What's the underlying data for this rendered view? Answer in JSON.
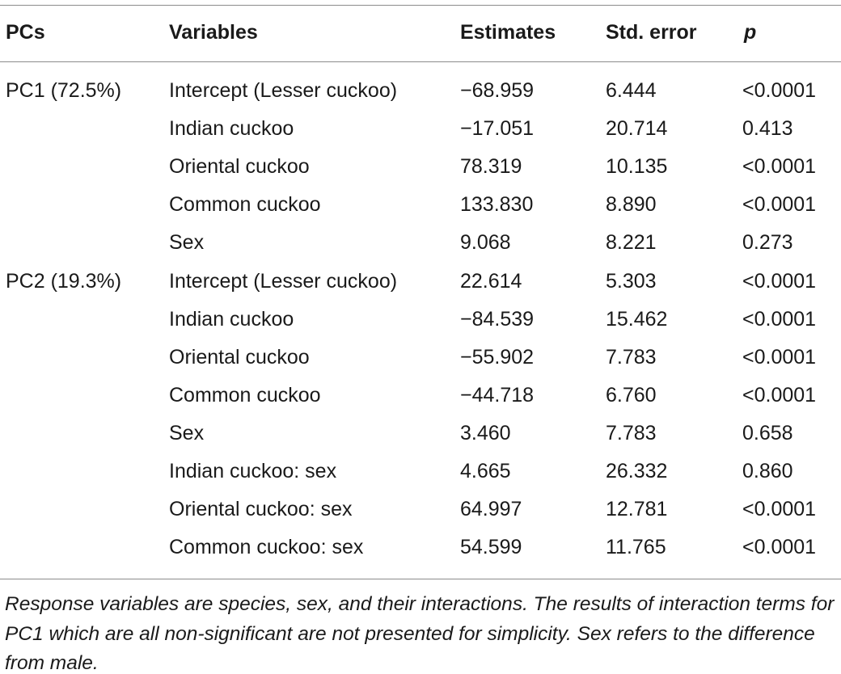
{
  "table": {
    "headers": {
      "pcs": "PCs",
      "variables": "Variables",
      "estimates": "Estimates",
      "std_error": "Std. error",
      "p": "p"
    },
    "rows": [
      {
        "pc": "PC1 (72.5%)",
        "variable": "Intercept (Lesser cuckoo)",
        "estimate": "−68.959",
        "std_error": "6.444",
        "p": "<0.0001"
      },
      {
        "pc": "",
        "variable": "Indian cuckoo",
        "estimate": "−17.051",
        "std_error": "20.714",
        "p": "0.413"
      },
      {
        "pc": "",
        "variable": "Oriental cuckoo",
        "estimate": "78.319",
        "std_error": "10.135",
        "p": "<0.0001"
      },
      {
        "pc": "",
        "variable": "Common cuckoo",
        "estimate": "133.830",
        "std_error": "8.890",
        "p": "<0.0001"
      },
      {
        "pc": "",
        "variable": "Sex",
        "estimate": "9.068",
        "std_error": "8.221",
        "p": "0.273"
      },
      {
        "pc": "PC2 (19.3%)",
        "variable": "Intercept (Lesser cuckoo)",
        "estimate": "22.614",
        "std_error": "5.303",
        "p": "<0.0001"
      },
      {
        "pc": "",
        "variable": "Indian cuckoo",
        "estimate": "−84.539",
        "std_error": "15.462",
        "p": "<0.0001"
      },
      {
        "pc": "",
        "variable": "Oriental cuckoo",
        "estimate": "−55.902",
        "std_error": "7.783",
        "p": "<0.0001"
      },
      {
        "pc": "",
        "variable": "Common cuckoo",
        "estimate": "−44.718",
        "std_error": "6.760",
        "p": "<0.0001"
      },
      {
        "pc": "",
        "variable": "Sex",
        "estimate": "3.460",
        "std_error": "7.783",
        "p": "0.658"
      },
      {
        "pc": "",
        "variable": "Indian cuckoo: sex",
        "estimate": "4.665",
        "std_error": "26.332",
        "p": "0.860"
      },
      {
        "pc": "",
        "variable": "Oriental cuckoo: sex",
        "estimate": "64.997",
        "std_error": "12.781",
        "p": "<0.0001"
      },
      {
        "pc": "",
        "variable": "Common cuckoo: sex",
        "estimate": "54.599",
        "std_error": "11.765",
        "p": "<0.0001"
      }
    ],
    "footnote": "Response variables are species, sex, and their interactions. The results of interaction terms for PC1 which are all non-significant are not presented for simplicity. Sex refers to the difference from male."
  }
}
